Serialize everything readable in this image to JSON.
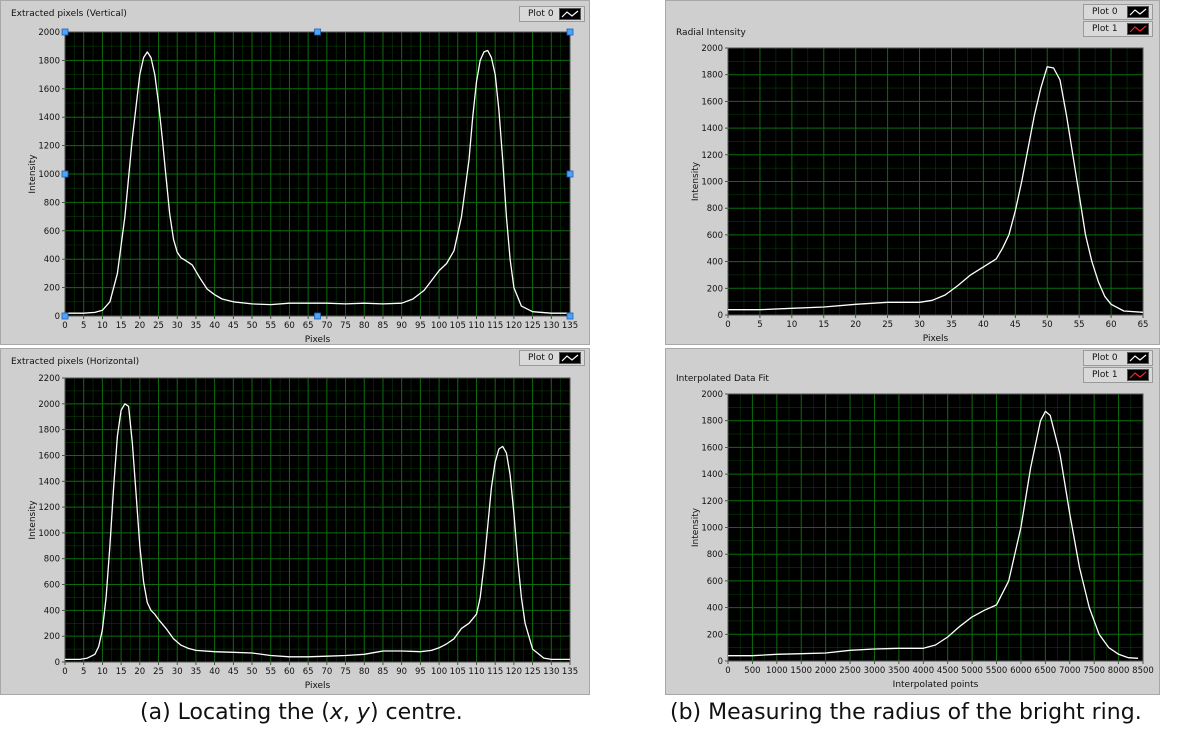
{
  "captions": {
    "left_prefix": "(a)  Locating the (",
    "left_x": "x",
    "left_sep": ", ",
    "left_y": "y",
    "left_suffix": ") centre.",
    "right": "(b)  Measuring the radius of the bright ring."
  },
  "colors": {
    "plot_bg": "#000000",
    "grid": "#0c6b0c",
    "trace": "#ffffff",
    "plot1_swatch": "#ff2020",
    "panel": "#cfcfcf"
  },
  "chart_data": [
    {
      "type": "line",
      "title": "Extracted pixels (Vertical)",
      "xlabel": "Pixels",
      "ylabel": "Intensity",
      "xlim": [
        0,
        135
      ],
      "ylim": [
        0,
        2000
      ],
      "xticks": [
        "0",
        "5",
        "10",
        "15",
        "20",
        "25",
        "30",
        "35",
        "40",
        "45",
        "50",
        "55",
        "60",
        "65",
        "70",
        "75",
        "80",
        "85",
        "90",
        "95",
        "100",
        "105",
        "110",
        "115",
        "120",
        "125",
        "130",
        "135"
      ],
      "yticks": [
        "0",
        "200",
        "400",
        "600",
        "800",
        "1000",
        "1200",
        "1400",
        "1600",
        "1800",
        "2000"
      ],
      "grid": true,
      "legend": [
        "Plot 0"
      ],
      "series": [
        {
          "x": [
            0,
            5,
            8,
            10,
            12,
            14,
            16,
            18,
            20,
            21,
            22,
            23,
            24,
            25,
            26,
            27,
            28,
            29,
            30,
            31,
            32,
            34,
            36,
            38,
            40,
            42,
            45,
            50,
            55,
            60,
            65,
            70,
            75,
            80,
            85,
            90,
            93,
            96,
            98,
            100,
            102,
            104,
            106,
            108,
            109,
            110,
            111,
            112,
            113,
            114,
            115,
            116,
            117,
            118,
            119,
            120,
            122,
            125,
            130,
            135
          ],
          "y": [
            20,
            20,
            25,
            40,
            100,
            300,
            700,
            1250,
            1700,
            1820,
            1860,
            1820,
            1700,
            1500,
            1250,
            980,
            720,
            540,
            450,
            410,
            395,
            360,
            270,
            190,
            150,
            120,
            100,
            85,
            80,
            90,
            90,
            90,
            85,
            90,
            85,
            90,
            120,
            180,
            250,
            320,
            370,
            460,
            700,
            1100,
            1400,
            1650,
            1800,
            1860,
            1870,
            1820,
            1700,
            1450,
            1100,
            700,
            400,
            200,
            70,
            30,
            20,
            20
          ]
        }
      ]
    },
    {
      "type": "line",
      "title": "Extracted pixels (Horizontal)",
      "xlabel": "Pixels",
      "ylabel": "Intensity",
      "xlim": [
        0,
        135
      ],
      "ylim": [
        0,
        2200
      ],
      "xticks": [
        "0",
        "5",
        "10",
        "15",
        "20",
        "25",
        "30",
        "35",
        "40",
        "45",
        "50",
        "55",
        "60",
        "65",
        "70",
        "75",
        "80",
        "85",
        "90",
        "95",
        "100",
        "105",
        "110",
        "115",
        "120",
        "125",
        "130",
        "135"
      ],
      "yticks": [
        "0",
        "200",
        "400",
        "600",
        "800",
        "1000",
        "1200",
        "1400",
        "1600",
        "1800",
        "2000",
        "2200"
      ],
      "grid": true,
      "legend": [
        "Plot 0"
      ],
      "series": [
        {
          "x": [
            0,
            4,
            6,
            8,
            9,
            10,
            11,
            12,
            13,
            14,
            15,
            16,
            17,
            18,
            19,
            20,
            21,
            22,
            23,
            24,
            25,
            27,
            29,
            31,
            33,
            35,
            40,
            45,
            50,
            55,
            60,
            65,
            70,
            75,
            80,
            85,
            90,
            95,
            98,
            100,
            102,
            104,
            106,
            108,
            110,
            111,
            112,
            113,
            114,
            115,
            116,
            117,
            118,
            119,
            120,
            121,
            122,
            123,
            125,
            128,
            130,
            135
          ],
          "y": [
            20,
            20,
            30,
            60,
            120,
            250,
            500,
            900,
            1350,
            1750,
            1950,
            2000,
            1980,
            1700,
            1300,
            900,
            620,
            460,
            400,
            370,
            330,
            260,
            180,
            130,
            105,
            90,
            80,
            75,
            70,
            50,
            40,
            40,
            45,
            50,
            60,
            85,
            85,
            80,
            90,
            110,
            140,
            180,
            260,
            300,
            370,
            500,
            750,
            1050,
            1350,
            1550,
            1650,
            1670,
            1620,
            1450,
            1150,
            800,
            500,
            300,
            100,
            30,
            20,
            20
          ]
        }
      ]
    },
    {
      "type": "line",
      "title": "Radial Intensity",
      "xlabel": "Pixels",
      "ylabel": "Intensity",
      "xlim": [
        0,
        65
      ],
      "ylim": [
        0,
        2000
      ],
      "xticks": [
        "0",
        "5",
        "10",
        "15",
        "20",
        "25",
        "30",
        "35",
        "40",
        "45",
        "50",
        "55",
        "60",
        "65"
      ],
      "yticks": [
        "0",
        "200",
        "400",
        "600",
        "800",
        "1000",
        "1200",
        "1400",
        "1600",
        "1800",
        "2000"
      ],
      "grid": true,
      "legend": [
        "Plot 0",
        "Plot 1"
      ],
      "series": [
        {
          "x": [
            0,
            5,
            10,
            15,
            20,
            25,
            30,
            32,
            34,
            36,
            38,
            40,
            42,
            43,
            44,
            45,
            46,
            47,
            48,
            49,
            50,
            51,
            52,
            53,
            54,
            55,
            56,
            57,
            58,
            59,
            60,
            62,
            65
          ],
          "y": [
            40,
            40,
            50,
            60,
            80,
            95,
            95,
            110,
            150,
            220,
            300,
            360,
            420,
            500,
            600,
            780,
            1000,
            1250,
            1500,
            1700,
            1860,
            1850,
            1760,
            1500,
            1200,
            900,
            600,
            400,
            250,
            140,
            80,
            30,
            20
          ]
        }
      ]
    },
    {
      "type": "line",
      "title": "Interpolated Data Fit",
      "xlabel": "Interpolated points",
      "ylabel": "Intensity",
      "xlim": [
        0,
        8500
      ],
      "ylim": [
        0,
        2000
      ],
      "xticks": [
        "0",
        "500",
        "1000",
        "1500",
        "2000",
        "2500",
        "3000",
        "3500",
        "4000",
        "4500",
        "5000",
        "5500",
        "6000",
        "6500",
        "7000",
        "7500",
        "8000",
        "8500"
      ],
      "yticks": [
        "0",
        "200",
        "400",
        "600",
        "800",
        "1000",
        "1200",
        "1400",
        "1600",
        "1800",
        "2000"
      ],
      "grid": true,
      "legend": [
        "Plot 0",
        "Plot 1"
      ],
      "series": [
        {
          "x": [
            0,
            500,
            1000,
            1500,
            2000,
            2500,
            3000,
            3500,
            4000,
            4250,
            4500,
            4750,
            5000,
            5250,
            5500,
            5750,
            6000,
            6200,
            6400,
            6500,
            6600,
            6800,
            7000,
            7200,
            7400,
            7600,
            7800,
            8000,
            8200,
            8400
          ],
          "y": [
            40,
            40,
            50,
            55,
            60,
            80,
            90,
            95,
            95,
            120,
            180,
            260,
            330,
            380,
            420,
            600,
            1000,
            1450,
            1800,
            1870,
            1840,
            1550,
            1100,
            700,
            400,
            200,
            100,
            50,
            25,
            20
          ]
        }
      ]
    }
  ]
}
